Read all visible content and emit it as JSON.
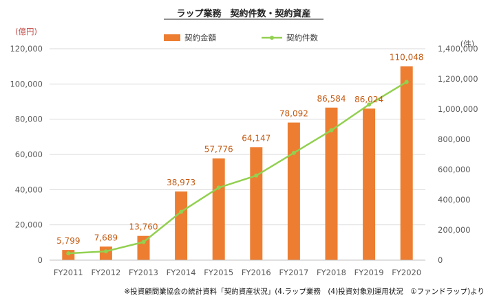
{
  "chart_data": {
    "type": "bar",
    "title": "ラップ業務　契約件数・契約資産",
    "categories": [
      "FY2011",
      "FY2012",
      "FY2013",
      "FY2014",
      "FY2015",
      "FY2016",
      "FY2017",
      "FY2018",
      "FY2019",
      "FY2020"
    ],
    "left_unit": "(億円)",
    "right_unit": "(件)",
    "ylim_left": [
      0,
      120000
    ],
    "ylim_right": [
      0,
      1400000
    ],
    "left_ticks": [
      "0",
      "20,000",
      "40,000",
      "60,000",
      "80,000",
      "100,000",
      "120,000"
    ],
    "right_ticks": [
      "0",
      "200,000",
      "400,000",
      "600,000",
      "800,000",
      "1,000,000",
      "1,200,000",
      "1,400,000"
    ],
    "series": [
      {
        "name": "契約金額",
        "kind": "bar",
        "axis": "left",
        "color": "#ed7d31",
        "values": [
          5799,
          7689,
          13760,
          38973,
          57776,
          64147,
          78092,
          86584,
          86024,
          110048
        ],
        "labels": [
          "5,799",
          "7,689",
          "13,760",
          "38,973",
          "57,776",
          "64,147",
          "78,092",
          "86,584",
          "86,024",
          "110,048"
        ]
      },
      {
        "name": "契約件数",
        "kind": "line",
        "axis": "right",
        "color": "#92d050",
        "values": [
          45000,
          58000,
          120000,
          320000,
          480000,
          560000,
          710000,
          860000,
          1030000,
          1180000
        ]
      }
    ],
    "legend_position": "top",
    "grid": true
  },
  "footnote": "※投資顧問業協会の統計資料「契約資産状況」(4.ラップ業務　(4)投資対象別運用状況　①ファンドラップ)より"
}
